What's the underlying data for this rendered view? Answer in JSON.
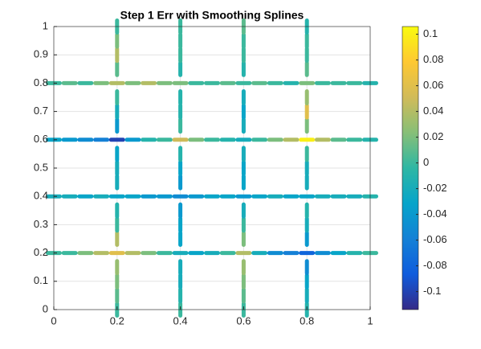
{
  "chart_data": {
    "type": "scatter",
    "title": "Step 1 Err with Smoothing Splines",
    "xlim": [
      0,
      1
    ],
    "ylim": [
      0,
      1
    ],
    "xticks": [
      0,
      0.2,
      0.4,
      0.6,
      0.8,
      1
    ],
    "yticks": [
      0,
      0.1,
      0.2,
      0.3,
      0.4,
      0.5,
      0.6,
      0.7,
      0.8,
      0.9,
      1
    ],
    "grid": true,
    "clim": [
      -0.114,
      0.106
    ],
    "cticks": [
      -0.1,
      -0.08,
      -0.06,
      -0.04,
      -0.02,
      0,
      0.02,
      0.04,
      0.06,
      0.08,
      0.1
    ],
    "colormap": [
      "#352a87",
      "#0f5cdd",
      "#1481d6",
      "#06a4ca",
      "#2eb7a4",
      "#87bf77",
      "#d1bb59",
      "#fec832",
      "#f9fb0e"
    ],
    "series": [
      {
        "x": [
          0,
          0.05,
          0.1,
          0.15,
          0.2,
          0.25,
          0.3,
          0.35,
          0.4,
          0.45,
          0.5,
          0.55,
          0.6,
          0.65,
          0.7,
          0.75,
          0.8,
          0.85,
          0.9,
          0.95,
          1
        ],
        "values": [
          0.2,
          0.2,
          0.2,
          0.2,
          0.2,
          0.2,
          0.2,
          0.2,
          0.2,
          0.2,
          0.2,
          0.2,
          0.2,
          0.2,
          0.2,
          0.2,
          0.2,
          0.2,
          0.2,
          0.2,
          0.2
        ],
        "c": [
          0.0,
          0.0,
          0.02,
          0.04,
          0.06,
          0.04,
          0.02,
          0.0,
          -0.02,
          -0.03,
          -0.02,
          0.0,
          0.04,
          -0.02,
          -0.05,
          -0.06,
          -0.08,
          -0.05,
          -0.03,
          -0.01,
          0.0
        ]
      },
      {
        "x": [
          0,
          0.05,
          0.1,
          0.15,
          0.2,
          0.25,
          0.3,
          0.35,
          0.4,
          0.45,
          0.5,
          0.55,
          0.6,
          0.65,
          0.7,
          0.75,
          0.8,
          0.85,
          0.9,
          0.95,
          1
        ],
        "values": [
          0.4,
          0.4,
          0.4,
          0.4,
          0.4,
          0.4,
          0.4,
          0.4,
          0.4,
          0.4,
          0.4,
          0.4,
          0.4,
          0.4,
          0.4,
          0.4,
          0.4,
          0.4,
          0.4,
          0.4,
          0.4
        ],
        "c": [
          -0.02,
          -0.02,
          -0.03,
          -0.02,
          -0.03,
          -0.03,
          -0.04,
          -0.04,
          -0.05,
          -0.04,
          -0.03,
          -0.03,
          -0.04,
          -0.03,
          -0.02,
          -0.03,
          -0.03,
          -0.02,
          -0.02,
          -0.02,
          -0.01
        ]
      },
      {
        "x": [
          0,
          0.05,
          0.1,
          0.15,
          0.2,
          0.25,
          0.3,
          0.35,
          0.4,
          0.45,
          0.5,
          0.55,
          0.6,
          0.65,
          0.7,
          0.75,
          0.8,
          0.85,
          0.9,
          0.95,
          1
        ],
        "values": [
          0.6,
          0.6,
          0.6,
          0.6,
          0.6,
          0.6,
          0.6,
          0.6,
          0.6,
          0.6,
          0.6,
          0.6,
          0.6,
          0.6,
          0.6,
          0.6,
          0.6,
          0.6,
          0.6,
          0.6,
          0.6
        ],
        "c": [
          -0.03,
          -0.04,
          -0.05,
          -0.06,
          -0.1,
          -0.04,
          -0.01,
          0.0,
          0.05,
          0.02,
          0.0,
          -0.01,
          -0.02,
          0.0,
          0.02,
          0.04,
          0.1,
          0.04,
          0.01,
          0.0,
          -0.01
        ]
      },
      {
        "x": [
          0,
          0.05,
          0.1,
          0.15,
          0.2,
          0.25,
          0.3,
          0.35,
          0.4,
          0.45,
          0.5,
          0.55,
          0.6,
          0.65,
          0.7,
          0.75,
          0.8,
          0.85,
          0.9,
          0.95,
          1
        ],
        "values": [
          0.8,
          0.8,
          0.8,
          0.8,
          0.8,
          0.8,
          0.8,
          0.8,
          0.8,
          0.8,
          0.8,
          0.8,
          0.8,
          0.8,
          0.8,
          0.8,
          0.8,
          0.8,
          0.8,
          0.8,
          0.8
        ],
        "c": [
          0.0,
          0.01,
          0.0,
          0.02,
          0.04,
          0.02,
          0.04,
          0.02,
          0.02,
          0.0,
          0.0,
          0.01,
          0.0,
          0.01,
          0.0,
          -0.01,
          0.02,
          0.0,
          0.0,
          0.0,
          -0.01
        ]
      },
      {
        "x": [
          0.2,
          0.2,
          0.2,
          0.2,
          0.2,
          0.2,
          0.2,
          0.2,
          0.2,
          0.2,
          0.2,
          0.2,
          0.2,
          0.2,
          0.2,
          0.2,
          0.2
        ],
        "values": [
          0,
          0.05,
          0.1,
          0.15,
          0.25,
          0.3,
          0.35,
          0.45,
          0.5,
          0.55,
          0.65,
          0.7,
          0.75,
          0.85,
          0.9,
          0.95,
          1
        ],
        "c": [
          0.0,
          0.01,
          0.02,
          0.03,
          0.04,
          0.0,
          -0.01,
          -0.02,
          -0.02,
          -0.03,
          -0.04,
          -0.02,
          0.0,
          0.01,
          0.04,
          0.02,
          0.0
        ]
      },
      {
        "x": [
          0.4,
          0.4,
          0.4,
          0.4,
          0.4,
          0.4,
          0.4,
          0.4,
          0.4,
          0.4,
          0.4,
          0.4,
          0.4,
          0.4,
          0.4,
          0.4,
          0.4
        ],
        "values": [
          0,
          0.05,
          0.1,
          0.15,
          0.25,
          0.3,
          0.35,
          0.45,
          0.5,
          0.55,
          0.65,
          0.7,
          0.75,
          0.85,
          0.9,
          0.95,
          1
        ],
        "c": [
          0.0,
          -0.01,
          -0.02,
          -0.02,
          -0.03,
          -0.03,
          -0.04,
          -0.04,
          -0.03,
          -0.01,
          0.0,
          -0.01,
          -0.01,
          -0.01,
          0.0,
          0.0,
          0.0
        ]
      },
      {
        "x": [
          0.6,
          0.6,
          0.6,
          0.6,
          0.6,
          0.6,
          0.6,
          0.6,
          0.6,
          0.6,
          0.6,
          0.6,
          0.6,
          0.6,
          0.6,
          0.6,
          0.6
        ],
        "values": [
          0,
          0.05,
          0.1,
          0.15,
          0.25,
          0.3,
          0.35,
          0.45,
          0.5,
          0.55,
          0.65,
          0.7,
          0.75,
          0.85,
          0.9,
          0.95,
          1
        ],
        "c": [
          0.0,
          0.01,
          0.02,
          0.03,
          0.02,
          0.0,
          -0.02,
          -0.03,
          -0.03,
          -0.02,
          -0.02,
          -0.03,
          -0.02,
          -0.01,
          0.0,
          0.0,
          0.01
        ]
      },
      {
        "x": [
          0.8,
          0.8,
          0.8,
          0.8,
          0.8,
          0.8,
          0.8,
          0.8,
          0.8,
          0.8,
          0.8,
          0.8,
          0.8,
          0.8,
          0.8,
          0.8,
          0.8
        ],
        "values": [
          0,
          0.05,
          0.1,
          0.15,
          0.25,
          0.3,
          0.35,
          0.45,
          0.5,
          0.55,
          0.65,
          0.7,
          0.75,
          0.85,
          0.9,
          0.95,
          1
        ],
        "c": [
          -0.01,
          -0.02,
          -0.03,
          -0.05,
          -0.04,
          -0.02,
          -0.01,
          -0.02,
          -0.02,
          0.0,
          0.02,
          0.06,
          0.03,
          0.01,
          0.0,
          0.0,
          -0.01
        ]
      }
    ]
  }
}
